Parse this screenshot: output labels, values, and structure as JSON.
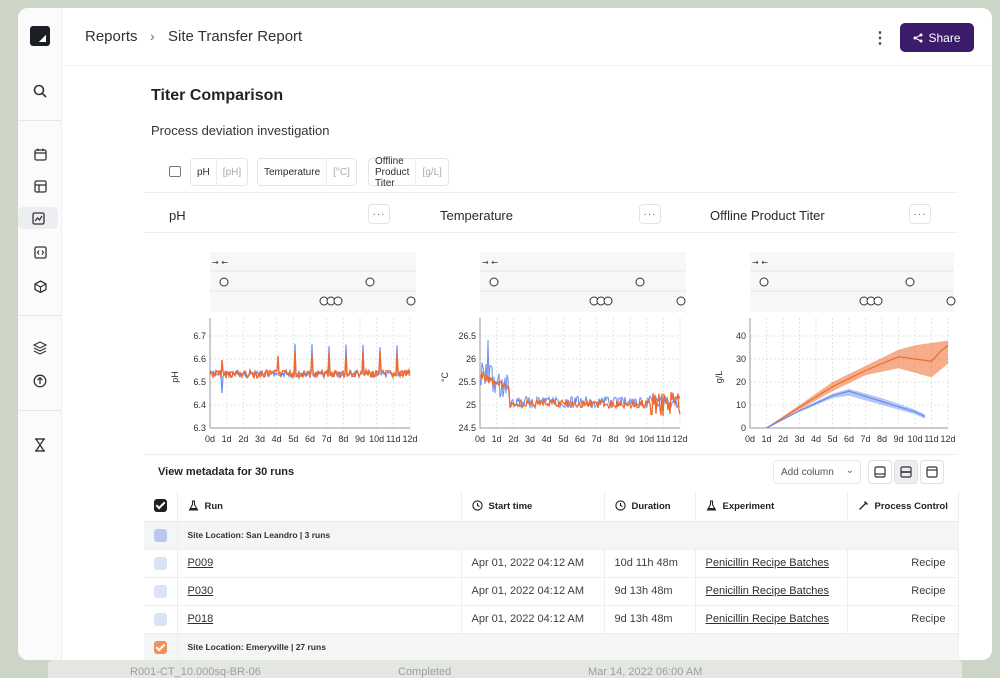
{
  "breadcrumb": {
    "root": "Reports",
    "current": "Site Transfer Report"
  },
  "toolbar": {
    "share_label": "Share"
  },
  "report": {
    "title": "Titer Comparison",
    "subtitle": "Process deviation investigation"
  },
  "chips": [
    {
      "label": "pH",
      "unit": "[pH]"
    },
    {
      "label": "Temperature",
      "unit": "[°C]"
    },
    {
      "label": "Offline Product Titer",
      "unit": "[g/L]"
    }
  ],
  "panels": [
    {
      "title": "pH",
      "ylabel": "pH",
      "yticks": [
        "6.7",
        "6.6",
        "6.5",
        "6.4",
        "6.3"
      ]
    },
    {
      "title": "Temperature",
      "ylabel": "°C",
      "yticks": [
        "26.5",
        "26",
        "25.5",
        "25",
        "24.5"
      ]
    },
    {
      "title": "Offline Product Titer",
      "ylabel": "g/L",
      "yticks": [
        "40",
        "30",
        "20",
        "10",
        "0"
      ]
    }
  ],
  "xticks": [
    "0d",
    "1d",
    "2d",
    "3d",
    "4d",
    "5d",
    "6d",
    "7d",
    "8d",
    "9d",
    "10d",
    "11d",
    "12d"
  ],
  "colors": {
    "site_a": "#6b8ff0",
    "site_b": "#ef6a2e",
    "share": "#3b1c6b"
  },
  "metadata": {
    "title": "View metadata for 30 runs",
    "add_column": "Add column",
    "columns": [
      "Run",
      "Start time",
      "Duration",
      "Experiment",
      "Process Control"
    ],
    "groups": [
      {
        "label": "Site Location: San Leandro | 3 runs",
        "rows": [
          {
            "run": "P009",
            "start": "Apr 01, 2022 04:12 AM",
            "duration": "10d 11h 48m",
            "experiment": "Penicillin Recipe Batches",
            "control": "Recipe"
          },
          {
            "run": "P030",
            "start": "Apr 01, 2022 04:12 AM",
            "duration": "9d 13h 48m",
            "experiment": "Penicillin Recipe Batches",
            "control": "Recipe"
          },
          {
            "run": "P018",
            "start": "Apr 01, 2022 04:12 AM",
            "duration": "9d 13h 48m",
            "experiment": "Penicillin Recipe Batches",
            "control": "Recipe"
          }
        ]
      },
      {
        "label": "Site Location: Emeryville | 27 runs",
        "rows": []
      }
    ]
  },
  "background_row": {
    "name": "R001-CT_10.000sq-BR-06",
    "status": "Completed",
    "time": "Mar 14, 2022 06:00 AM"
  }
}
